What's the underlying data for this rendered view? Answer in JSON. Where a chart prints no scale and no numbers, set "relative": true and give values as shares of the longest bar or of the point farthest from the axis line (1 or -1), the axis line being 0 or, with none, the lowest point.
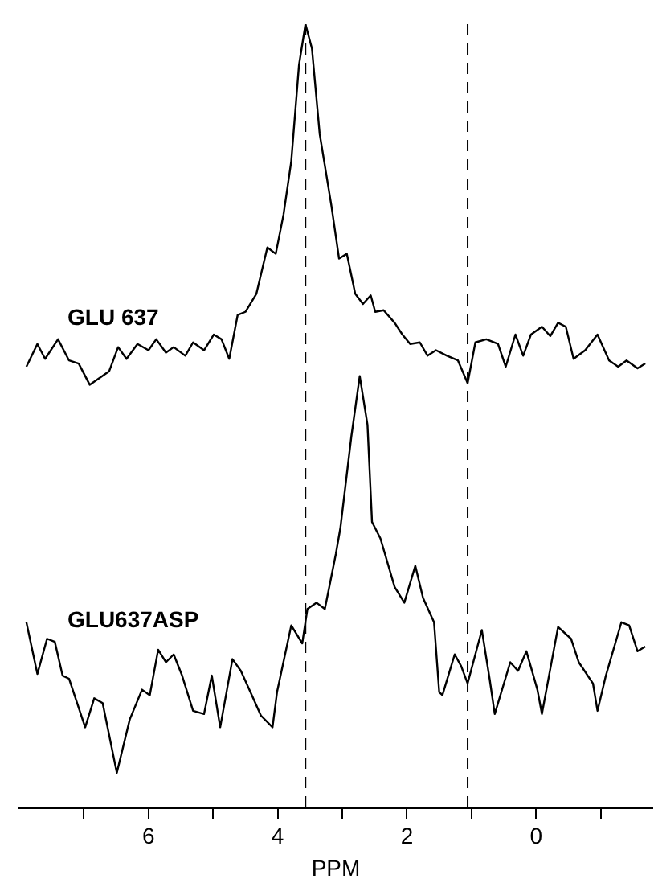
{
  "chart_data": {
    "type": "line",
    "relative": true,
    "xlabel": "PPM",
    "xlim": [
      8,
      -1.8
    ],
    "xticks": [
      {
        "value": 7,
        "label": null
      },
      6,
      {
        "value": 5,
        "label": null
      },
      4,
      {
        "value": 3,
        "label": null
      },
      2,
      {
        "value": 1,
        "label": null
      },
      0,
      {
        "value": -1,
        "label": null
      }
    ],
    "grid": false,
    "legend": false,
    "marker": "none",
    "line_style": "solid",
    "tick_labels": "x",
    "ref_lines": [
      {
        "axis": "x",
        "value": 3.57,
        "line_style": "dashed",
        "color": "#000000"
      },
      {
        "axis": "x",
        "value": 1.06,
        "line_style": "dashed",
        "color": "#000000"
      }
    ],
    "series": [
      {
        "name": "GLU 637",
        "color": "#000000",
        "x": [
          7.89,
          7.72,
          7.6,
          7.4,
          7.23,
          7.08,
          6.91,
          6.61,
          6.47,
          6.34,
          6.17,
          6.0,
          5.88,
          5.73,
          5.61,
          5.43,
          5.31,
          5.14,
          4.99,
          4.87,
          4.75,
          4.62,
          4.5,
          4.33,
          4.16,
          4.03,
          3.91,
          3.79,
          3.67,
          3.57,
          3.47,
          3.35,
          3.17,
          3.05,
          2.93,
          2.8,
          2.68,
          2.56,
          2.49,
          2.36,
          2.19,
          2.07,
          1.95,
          1.8,
          1.68,
          1.55,
          1.38,
          1.21,
          1.06,
          0.94,
          0.77,
          0.59,
          0.47,
          0.32,
          0.2,
          0.08,
          -0.09,
          -0.22,
          -0.34,
          -0.46,
          -0.58,
          -0.76,
          -0.95,
          -1.13,
          -1.27,
          -1.4,
          -1.57,
          -1.69
        ],
        "values": [
          0.563,
          0.592,
          0.573,
          0.598,
          0.571,
          0.567,
          0.54,
          0.557,
          0.588,
          0.573,
          0.592,
          0.584,
          0.598,
          0.581,
          0.588,
          0.577,
          0.594,
          0.584,
          0.604,
          0.598,
          0.573,
          0.629,
          0.633,
          0.656,
          0.715,
          0.707,
          0.757,
          0.825,
          0.948,
          1.0,
          0.969,
          0.86,
          0.769,
          0.701,
          0.707,
          0.656,
          0.643,
          0.654,
          0.633,
          0.635,
          0.619,
          0.604,
          0.592,
          0.594,
          0.577,
          0.584,
          0.577,
          0.571,
          0.542,
          0.594,
          0.598,
          0.592,
          0.563,
          0.604,
          0.577,
          0.604,
          0.614,
          0.602,
          0.619,
          0.614,
          0.573,
          0.584,
          0.604,
          0.571,
          0.563,
          0.571,
          0.561,
          0.567
        ]
      },
      {
        "name": "GLU637ASP",
        "color": "#000000",
        "x": [
          7.89,
          7.72,
          7.57,
          7.45,
          7.33,
          7.23,
          6.98,
          6.84,
          6.71,
          6.49,
          6.29,
          6.1,
          5.98,
          5.85,
          5.73,
          5.61,
          5.48,
          5.31,
          5.14,
          5.02,
          4.89,
          4.7,
          4.57,
          4.4,
          4.26,
          4.08,
          4.01,
          3.79,
          3.62,
          3.54,
          3.4,
          3.27,
          3.1,
          3.03,
          2.86,
          2.73,
          2.61,
          2.54,
          2.41,
          2.19,
          2.04,
          1.87,
          1.75,
          1.58,
          1.5,
          1.45,
          1.26,
          1.16,
          1.06,
          0.84,
          0.72,
          0.64,
          0.4,
          0.28,
          0.15,
          -0.02,
          -0.09,
          -0.34,
          -0.54,
          -0.66,
          -0.88,
          -0.95,
          -1.08,
          -1.32,
          -1.44,
          -1.57,
          -1.69
        ],
        "values": [
          0.237,
          0.171,
          0.216,
          0.212,
          0.169,
          0.165,
          0.103,
          0.14,
          0.134,
          0.045,
          0.113,
          0.151,
          0.144,
          0.202,
          0.186,
          0.196,
          0.169,
          0.124,
          0.12,
          0.169,
          0.103,
          0.19,
          0.175,
          0.144,
          0.118,
          0.103,
          0.148,
          0.233,
          0.21,
          0.254,
          0.262,
          0.254,
          0.324,
          0.357,
          0.474,
          0.551,
          0.489,
          0.365,
          0.344,
          0.282,
          0.262,
          0.309,
          0.268,
          0.237,
          0.148,
          0.144,
          0.196,
          0.181,
          0.159,
          0.227,
          0.165,
          0.12,
          0.186,
          0.175,
          0.2,
          0.151,
          0.12,
          0.231,
          0.216,
          0.186,
          0.159,
          0.124,
          0.169,
          0.237,
          0.233,
          0.2,
          0.206
        ]
      }
    ]
  }
}
